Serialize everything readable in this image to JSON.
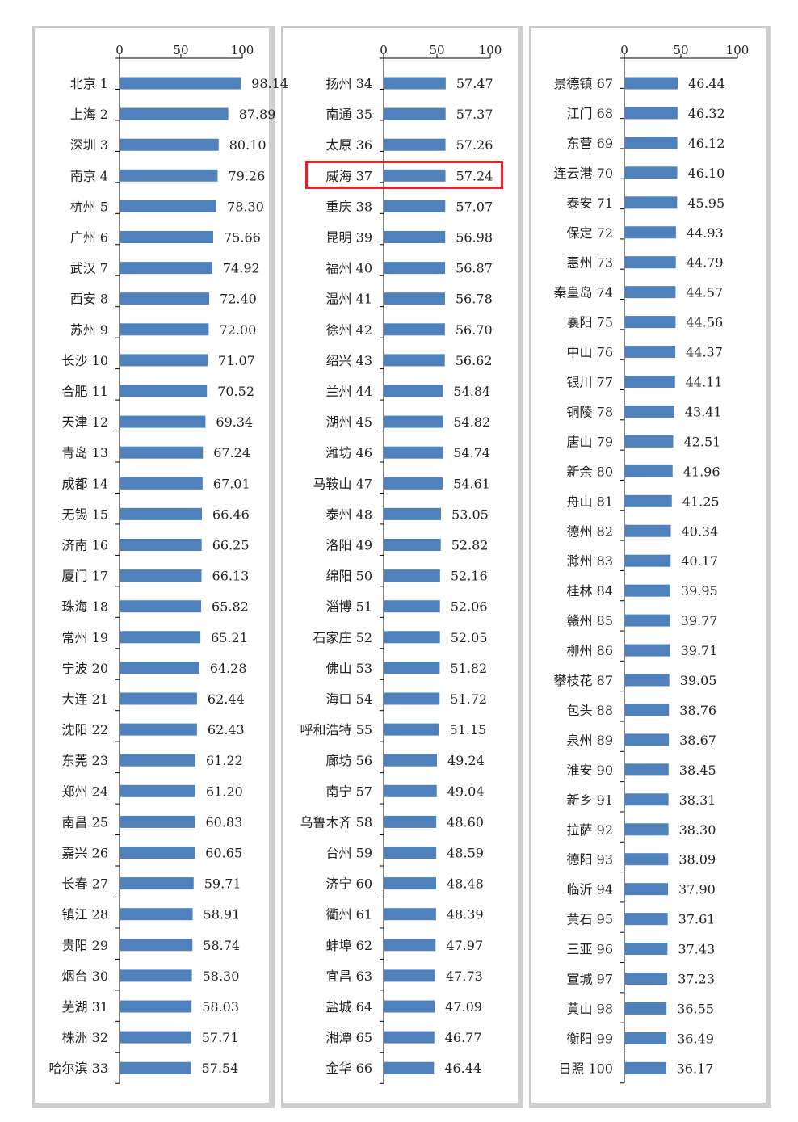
{
  "chart_data": [
    {
      "type": "bar",
      "orientation": "horizontal",
      "xlim": [
        0,
        100
      ],
      "xticks": [
        0,
        50,
        100
      ],
      "categories": [
        "北京 1",
        "上海 2",
        "深圳 3",
        "南京 4",
        "杭州 5",
        "广州 6",
        "武汉 7",
        "西安 8",
        "苏州 9",
        "长沙 10",
        "合肥 11",
        "天津 12",
        "青岛 13",
        "成都 14",
        "无锡 15",
        "济南 16",
        "厦门 17",
        "珠海 18",
        "常州 19",
        "宁波 20",
        "大连 21",
        "沈阳 22",
        "东莞 23",
        "郑州 24",
        "南昌 25",
        "嘉兴 26",
        "长春 27",
        "镇江 28",
        "贵阳 29",
        "烟台 30",
        "芜湖 31",
        "株洲 32",
        "哈尔滨 33"
      ],
      "values": [
        98.14,
        87.89,
        80.1,
        79.26,
        78.3,
        75.66,
        74.92,
        72.4,
        72.0,
        71.07,
        70.52,
        69.34,
        67.24,
        67.01,
        66.46,
        66.25,
        66.13,
        65.82,
        65.21,
        64.28,
        62.44,
        62.43,
        61.22,
        61.2,
        60.83,
        60.65,
        59.71,
        58.91,
        58.74,
        58.3,
        58.03,
        57.71,
        57.54
      ],
      "labels": [
        "98.14",
        "87.89",
        "80.10",
        "79.26",
        "78.30",
        "75.66",
        "74.92",
        "72.40",
        "72.00",
        "71.07",
        "70.52",
        "69.34",
        "67.24",
        "67.01",
        "66.46",
        "66.25",
        "66.13",
        "65.82",
        "65.21",
        "64.28",
        "62.44",
        "62.43",
        "61.22",
        "61.20",
        "60.83",
        "60.65",
        "59.71",
        "58.91",
        "58.74",
        "58.30",
        "58.03",
        "57.71",
        "57.54"
      ],
      "bar_color": "#4f81bd"
    },
    {
      "type": "bar",
      "orientation": "horizontal",
      "xlim": [
        0,
        100
      ],
      "xticks": [
        0,
        50,
        100
      ],
      "categories": [
        "扬州 34",
        "南通 35",
        "太原 36",
        "威海 37",
        "重庆 38",
        "昆明 39",
        "福州 40",
        "温州 41",
        "徐州 42",
        "绍兴 43",
        "兰州 44",
        "湖州 45",
        "潍坊 46",
        "马鞍山 47",
        "泰州 48",
        "洛阳 49",
        "绵阳 50",
        "淄博 51",
        "石家庄 52",
        "佛山 53",
        "海口 54",
        "呼和浩特 55",
        "廊坊 56",
        "南宁 57",
        "乌鲁木齐 58",
        "台州 59",
        "济宁 60",
        "衢州 61",
        "蚌埠 62",
        "宜昌 63",
        "盐城 64",
        "湘潭 65",
        "金华 66"
      ],
      "values": [
        57.47,
        57.37,
        57.26,
        57.24,
        57.07,
        56.98,
        56.87,
        56.78,
        56.7,
        56.62,
        54.84,
        54.82,
        54.74,
        54.61,
        53.05,
        52.82,
        52.16,
        52.06,
        52.05,
        51.82,
        51.72,
        51.15,
        49.24,
        49.04,
        48.6,
        48.59,
        48.48,
        48.39,
        47.97,
        47.73,
        47.09,
        46.77,
        46.44
      ],
      "labels": [
        "57.47",
        "57.37",
        "57.26",
        "57.24",
        "57.07",
        "56.98",
        "56.87",
        "56.78",
        "56.70",
        "56.62",
        "54.84",
        "54.82",
        "54.74",
        "54.61",
        "53.05",
        "52.82",
        "52.16",
        "52.06",
        "52.05",
        "51.82",
        "51.72",
        "51.15",
        "49.24",
        "49.04",
        "48.60",
        "48.59",
        "48.48",
        "48.39",
        "47.97",
        "47.73",
        "47.09",
        "46.77",
        "46.44"
      ],
      "bar_color": "#4f81bd",
      "highlighted_category": "威海 37",
      "highlight_color": "#e0232a"
    },
    {
      "type": "bar",
      "orientation": "horizontal",
      "xlim": [
        0,
        100
      ],
      "xticks": [
        0,
        50,
        100
      ],
      "categories": [
        "景德镇 67",
        "江门 68",
        "东营 69",
        "连云港 70",
        "泰安 71",
        "保定 72",
        "惠州 73",
        "秦皇岛 74",
        "襄阳 75",
        "中山 76",
        "银川 77",
        "铜陵 78",
        "唐山 79",
        "新余 80",
        "舟山 81",
        "德州 82",
        "滁州 83",
        "桂林 84",
        "赣州 85",
        "柳州 86",
        "攀枝花 87",
        "包头 88",
        "泉州 89",
        "淮安 90",
        "新乡 91",
        "拉萨 92",
        "德阳 93",
        "临沂 94",
        "黄石 95",
        "三亚 96",
        "宣城 97",
        "黄山 98",
        "衡阳 99",
        "日照 100"
      ],
      "values": [
        46.44,
        46.32,
        46.12,
        46.1,
        45.95,
        44.93,
        44.79,
        44.57,
        44.56,
        44.37,
        44.11,
        43.41,
        42.51,
        41.96,
        41.25,
        40.34,
        40.17,
        39.95,
        39.77,
        39.71,
        39.05,
        38.76,
        38.67,
        38.45,
        38.31,
        38.3,
        38.09,
        37.9,
        37.61,
        37.43,
        37.23,
        36.55,
        36.49,
        36.17
      ],
      "labels": [
        "46.44",
        "46.32",
        "46.12",
        "46.10",
        "45.95",
        "44.93",
        "44.79",
        "44.57",
        "44.56",
        "44.37",
        "44.11",
        "43.41",
        "42.51",
        "41.96",
        "41.25",
        "40.34",
        "40.17",
        "39.95",
        "39.77",
        "39.71",
        "39.05",
        "38.76",
        "38.67",
        "38.45",
        "38.31",
        "38.30",
        "38.09",
        "37.90",
        "37.61",
        "37.43",
        "37.23",
        "36.55",
        "36.49",
        "36.17"
      ],
      "bar_color": "#4f81bd"
    }
  ]
}
